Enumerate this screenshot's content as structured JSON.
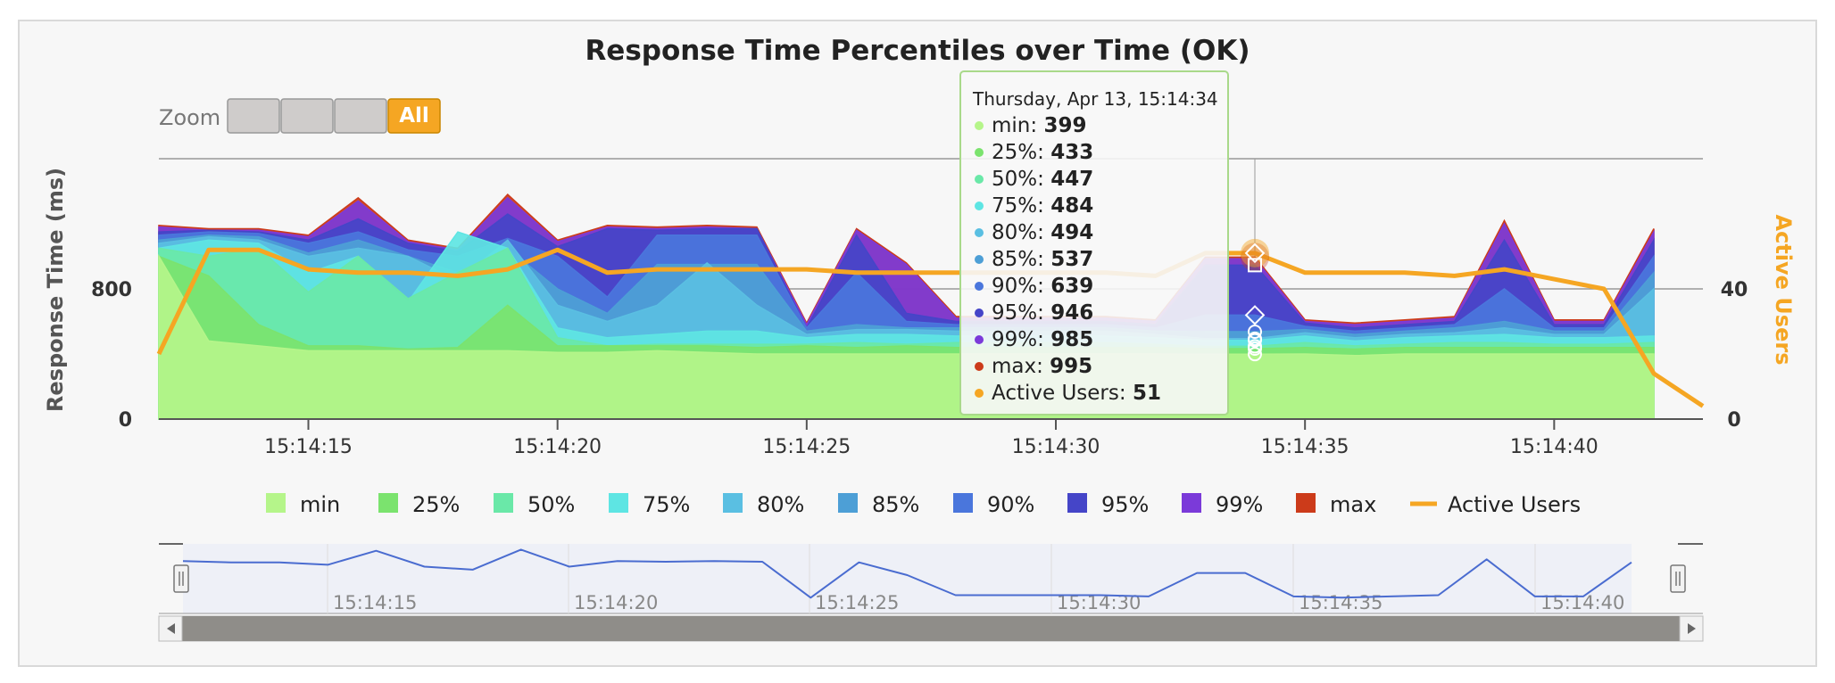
{
  "chart_data": {
    "type": "area",
    "title": "Response Time Percentiles over Time (OK)",
    "ylabel": "Response Time (ms)",
    "y2label": "Active Users",
    "ylim": [
      0,
      1600
    ],
    "y2lim": [
      0,
      80
    ],
    "yticks": [
      "0",
      "800"
    ],
    "y2ticks": [
      "0",
      "40"
    ],
    "x": [
      "15:14:12",
      "15:14:13",
      "15:14:14",
      "15:14:15",
      "15:14:16",
      "15:14:17",
      "15:14:18",
      "15:14:19",
      "15:14:20",
      "15:14:21",
      "15:14:22",
      "15:14:23",
      "15:14:24",
      "15:14:25",
      "15:14:26",
      "15:14:27",
      "15:14:28",
      "15:14:29",
      "15:14:30",
      "15:14:31",
      "15:14:32",
      "15:14:33",
      "15:14:34",
      "15:14:35",
      "15:14:36",
      "15:14:37",
      "15:14:38",
      "15:14:39",
      "15:14:40",
      "15:14:41",
      "15:14:42"
    ],
    "xticks": [
      "15:14:15",
      "15:14:20",
      "15:14:25",
      "15:14:30",
      "15:14:35",
      "15:14:40"
    ],
    "series": [
      {
        "name": "min",
        "color": "#b5f58a",
        "values": [
          1000,
          480,
          450,
          420,
          420,
          420,
          420,
          420,
          410,
          410,
          420,
          410,
          400,
          400,
          400,
          400,
          400,
          400,
          400,
          400,
          400,
          399,
          399,
          400,
          390,
          400,
          400,
          400,
          400,
          400,
          400
        ]
      },
      {
        "name": "25%",
        "color": "#7be36e",
        "values": [
          1000,
          880,
          580,
          450,
          450,
          430,
          440,
          700,
          450,
          450,
          450,
          450,
          440,
          450,
          440,
          450,
          440,
          440,
          440,
          440,
          440,
          433,
          433,
          440,
          430,
          440,
          440,
          440,
          440,
          440,
          440
        ]
      },
      {
        "name": "50%",
        "color": "#6ae8a8",
        "values": [
          1050,
          1000,
          1050,
          780,
          1000,
          740,
          900,
          1050,
          500,
          450,
          460,
          460,
          460,
          460,
          470,
          460,
          470,
          470,
          470,
          470,
          460,
          447,
          447,
          470,
          450,
          460,
          470,
          470,
          460,
          460,
          470
        ]
      },
      {
        "name": "75%",
        "color": "#5ee5e3",
        "values": [
          1050,
          1100,
          1080,
          900,
          1000,
          720,
          1150,
          1050,
          560,
          500,
          520,
          540,
          540,
          500,
          520,
          520,
          510,
          510,
          510,
          510,
          500,
          484,
          484,
          510,
          480,
          500,
          510,
          520,
          500,
          500,
          510
        ]
      },
      {
        "name": "80%",
        "color": "#5abfe2",
        "values": [
          1080,
          1120,
          1100,
          1000,
          1050,
          1000,
          850,
          1100,
          700,
          600,
          700,
          960,
          700,
          520,
          550,
          550,
          540,
          540,
          540,
          540,
          520,
          494,
          494,
          530,
          500,
          520,
          530,
          560,
          520,
          520,
          800
        ]
      },
      {
        "name": "85%",
        "color": "#4d9fd6",
        "values": [
          1100,
          1130,
          1120,
          1020,
          1100,
          1000,
          900,
          1050,
          800,
          650,
          950,
          950,
          950,
          540,
          580,
          560,
          560,
          560,
          560,
          560,
          540,
          537,
          537,
          550,
          520,
          540,
          560,
          600,
          540,
          540,
          900
        ]
      },
      {
        "name": "90%",
        "color": "#4a76dc",
        "values": [
          1130,
          1150,
          1140,
          1080,
          1150,
          1040,
          1000,
          1110,
          1000,
          750,
          1130,
          1130,
          1130,
          560,
          900,
          600,
          580,
          580,
          580,
          580,
          560,
          639,
          639,
          570,
          540,
          560,
          580,
          800,
          560,
          560,
          1000
        ]
      },
      {
        "name": "95%",
        "color": "#4545c8",
        "values": [
          1150,
          1160,
          1150,
          1100,
          1230,
          1080,
          1030,
          1260,
          1060,
          1170,
          1160,
          1170,
          1170,
          560,
          1130,
          650,
          600,
          600,
          600,
          600,
          580,
          946,
          946,
          590,
          560,
          580,
          600,
          1100,
          580,
          580,
          1100
        ]
      },
      {
        "name": "99%",
        "color": "#7b3ad9",
        "values": [
          1180,
          1160,
          1160,
          1120,
          1340,
          1090,
          1040,
          1360,
          1090,
          1180,
          1170,
          1180,
          1170,
          580,
          1160,
          950,
          620,
          620,
          620,
          620,
          600,
          985,
          985,
          600,
          580,
          600,
          620,
          1200,
          600,
          600,
          1150
        ]
      },
      {
        "name": "max",
        "color": "#cc3b1a",
        "values": [
          1190,
          1170,
          1170,
          1130,
          1360,
          1100,
          1050,
          1380,
          1100,
          1190,
          1180,
          1190,
          1180,
          590,
          1170,
          960,
          630,
          630,
          630,
          630,
          610,
          995,
          995,
          610,
          590,
          610,
          630,
          1220,
          610,
          610,
          1170
        ]
      }
    ],
    "line_series": {
      "name": "Active Users",
      "color": "#f5a623",
      "values": [
        20,
        52,
        52,
        46,
        45,
        45,
        44,
        46,
        52,
        45,
        46,
        46,
        46,
        46,
        45,
        45,
        45,
        45,
        45,
        45,
        44,
        51,
        51,
        45,
        45,
        45,
        44,
        46,
        43,
        40,
        14
      ]
    },
    "legend_position": "bottom",
    "tooltip": {
      "header": "Thursday, Apr 13, 15:14:34",
      "rows": [
        {
          "label": "min: ",
          "value": "399",
          "color": "#b5f58a"
        },
        {
          "label": "25%: ",
          "value": "433",
          "color": "#7be36e"
        },
        {
          "label": "50%: ",
          "value": "447",
          "color": "#6ae8a8"
        },
        {
          "label": "75%: ",
          "value": "484",
          "color": "#5ee5e3"
        },
        {
          "label": "80%: ",
          "value": "494",
          "color": "#5abfe2"
        },
        {
          "label": "85%: ",
          "value": "537",
          "color": "#4d9fd6"
        },
        {
          "label": "90%: ",
          "value": "639",
          "color": "#4a76dc"
        },
        {
          "label": "95%: ",
          "value": "946",
          "color": "#4545c8"
        },
        {
          "label": "99%: ",
          "value": "985",
          "color": "#7b3ad9"
        },
        {
          "label": "max: ",
          "value": "995",
          "color": "#cc3b1a"
        },
        {
          "label": "Active Users: ",
          "value": "51",
          "color": "#f5a623"
        }
      ]
    }
  },
  "zoom": {
    "label": "Zoom",
    "buttons": [
      "",
      "",
      "",
      "All"
    ],
    "active_index": 3,
    "active_color": "#f5a623"
  }
}
